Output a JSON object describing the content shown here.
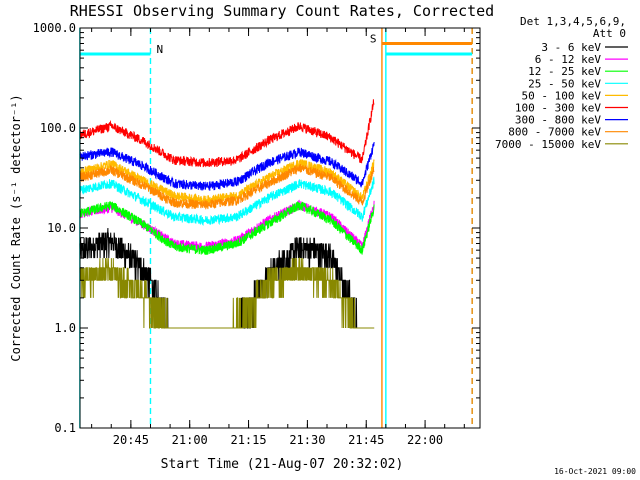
{
  "chart_data": {
    "type": "line",
    "title": "RHESSI Observing Summary Count Rates, Corrected",
    "xlabel": "Start Time (21-Aug-07 20:32:02)",
    "ylabel": "Corrected Count Rate (s⁻¹ detector⁻¹)",
    "y_scale": "log",
    "ylim": [
      0.1,
      1000.0
    ],
    "xlim": [
      "20:32:02",
      "22:14"
    ],
    "x_ticks": [
      "20:45",
      "21:00",
      "21:15",
      "21:30",
      "21:45",
      "22:00"
    ],
    "y_ticks": [
      "0.1",
      "1.0",
      "10.0",
      "100.0",
      "1000.0"
    ],
    "detectors_label": "Det 1,3,4,5,6,9,",
    "attenuator_label": "Att 0",
    "timestamp": "16-Oct-2021 09:00",
    "sampled_times": [
      "20:32",
      "20:40",
      "20:48",
      "20:56",
      "21:04",
      "21:12",
      "21:20",
      "21:28",
      "21:36",
      "21:44",
      "21:47"
    ],
    "series": [
      {
        "name": "3 - 6 keV",
        "color": "#000000",
        "values": [
          6.0,
          7.5,
          4.0,
          1.0,
          1.0,
          1.0,
          3.5,
          6.5,
          5.5,
          1.0,
          1.0
        ]
      },
      {
        "name": "6 - 12 keV",
        "color": "#ff00ff",
        "values": [
          14,
          16,
          11,
          7,
          6.5,
          7.5,
          12,
          17,
          13,
          6.5,
          18
        ]
      },
      {
        "name": "12 - 25 keV",
        "color": "#00ff00",
        "values": [
          14,
          17,
          11,
          6.5,
          6,
          7,
          11,
          17,
          12,
          6,
          16
        ]
      },
      {
        "name": "25 - 50 keV",
        "color": "#00ffff",
        "values": [
          24,
          28,
          19,
          13,
          12,
          13,
          20,
          28,
          23,
          13,
          30
        ]
      },
      {
        "name": "50 - 100 keV",
        "color": "#ffbb00",
        "values": [
          36,
          44,
          30,
          21,
          19,
          21,
          32,
          45,
          36,
          20,
          45
        ]
      },
      {
        "name": "100 - 300 keV",
        "color": "#ff0000",
        "values": [
          85,
          105,
          75,
          48,
          45,
          48,
          75,
          105,
          80,
          48,
          190
        ]
      },
      {
        "name": "300 - 800 keV",
        "color": "#0000ff",
        "values": [
          52,
          58,
          42,
          28,
          26,
          29,
          45,
          58,
          46,
          28,
          70
        ]
      },
      {
        "name": "800 - 7000 keV",
        "color": "#ff8800",
        "values": [
          32,
          38,
          27,
          18,
          17,
          19,
          28,
          40,
          32,
          18,
          40
        ]
      },
      {
        "name": "7000 - 15000 keV",
        "color": "#888800",
        "values": [
          3.2,
          3.8,
          2.2,
          1.0,
          1.0,
          1.2,
          2.8,
          3.8,
          3.0,
          1.0,
          1.0
        ]
      }
    ],
    "flags": [
      {
        "label": "N",
        "color": "#00ffff",
        "level": 550,
        "start": "20:32",
        "end": "20:50"
      },
      {
        "label": "",
        "color": "#00ffff",
        "level": 550,
        "start": "21:50",
        "end": "22:12"
      },
      {
        "label": "S",
        "color": "#ff8800",
        "level": 700,
        "start": "21:49",
        "end": "22:12"
      }
    ],
    "vertical_lines": [
      {
        "time": "20:32",
        "color": "#00ffff",
        "style": "solid"
      },
      {
        "time": "20:50",
        "color": "#00ffff",
        "style": "dashed"
      },
      {
        "time": "21:49",
        "color": "#ff8800",
        "style": "solid"
      },
      {
        "time": "21:50",
        "color": "#00ffff",
        "style": "solid"
      },
      {
        "time": "22:12",
        "color": "#00ffff",
        "style": "dashed"
      },
      {
        "time": "22:12",
        "color": "#ff8800",
        "style": "dashed"
      }
    ]
  }
}
